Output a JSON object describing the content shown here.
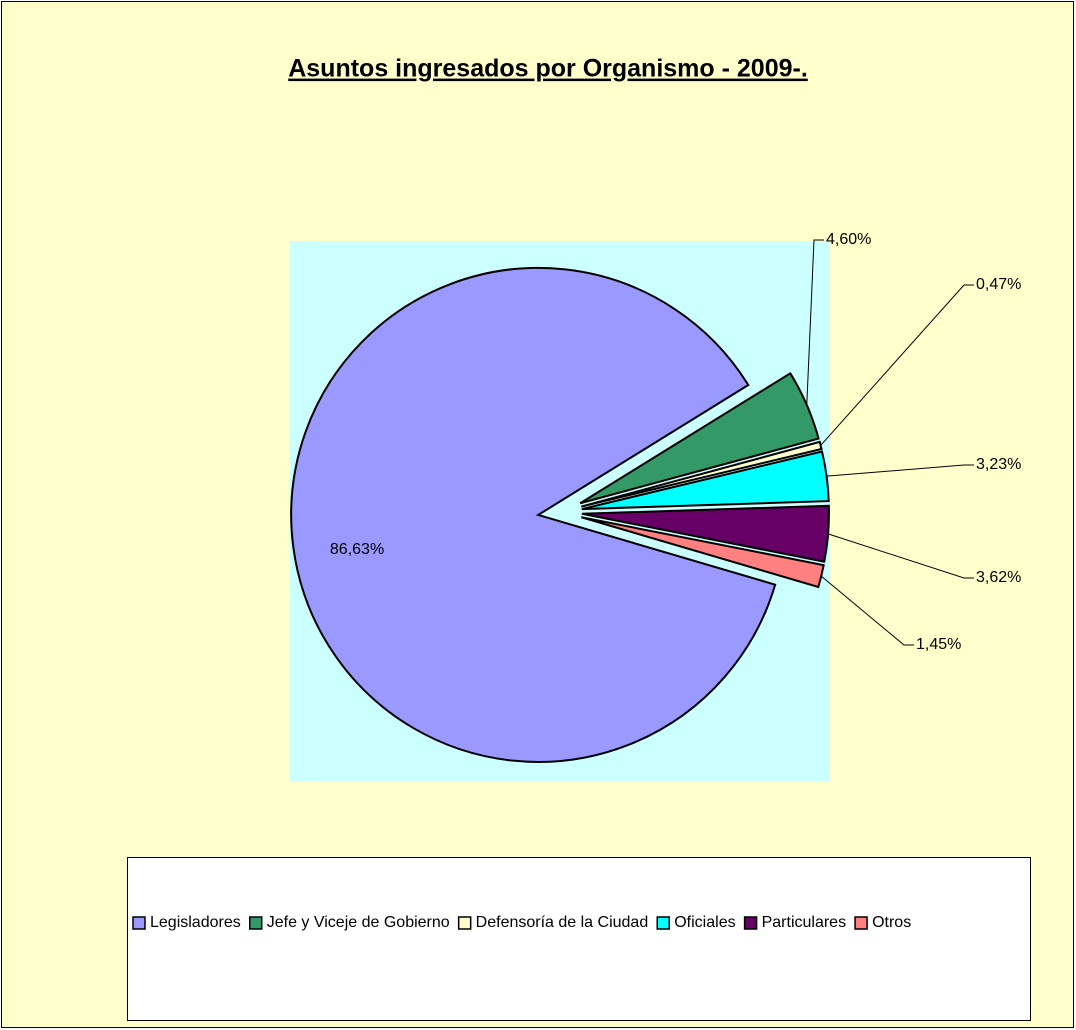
{
  "chart_data": {
    "type": "pie",
    "title": "Asuntos ingresados por Organismo - 2009-.",
    "categories": [
      "Legisladores",
      "Jefe y Viceje de Gobierno",
      "Defensoría de la Ciudad",
      "Oficiales",
      "Particulares",
      "Otros"
    ],
    "values": [
      86.63,
      4.6,
      0.47,
      3.23,
      3.62,
      1.45
    ],
    "value_labels": [
      "86,63%",
      "4,60%",
      "0,47%",
      "3,23%",
      "3,62%",
      "1,45%"
    ],
    "colors": [
      "#9999ff",
      "#339966",
      "#ffffcc",
      "#00ffff",
      "#660066",
      "#ff8080"
    ],
    "legend": "bottom"
  }
}
